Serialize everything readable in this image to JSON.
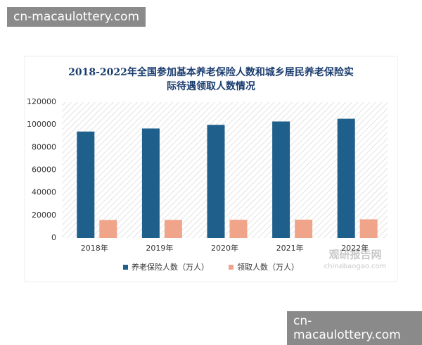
{
  "watermarks": [
    "cn-macaulottery.com",
    "cn-macaulottery.com"
  ],
  "chart_data": {
    "type": "bar",
    "title": [
      "2018-2022年全国参加基本养老保险人数和城乡居民养老保险实",
      "际待遇领取人数情况"
    ],
    "source_mark": [
      "观研报告网",
      "chinabaogao.com"
    ],
    "categories": [
      "2018年",
      "2019年",
      "2020年",
      "2021年",
      "2022年"
    ],
    "series": [
      {
        "name": "养老保险人数（万人）",
        "color": "#1f5f8b",
        "values": [
          94000,
          96700,
          99900,
          102900,
          105300
        ]
      },
      {
        "name": "领取人数（万人）",
        "color": "#f0a58a",
        "values": [
          15900,
          16000,
          16100,
          16200,
          16500
        ]
      }
    ],
    "ylim": [
      0,
      120000
    ],
    "yticks": [
      0,
      20000,
      40000,
      60000,
      80000,
      100000,
      120000
    ],
    "grid": false,
    "legend": "bottom"
  }
}
